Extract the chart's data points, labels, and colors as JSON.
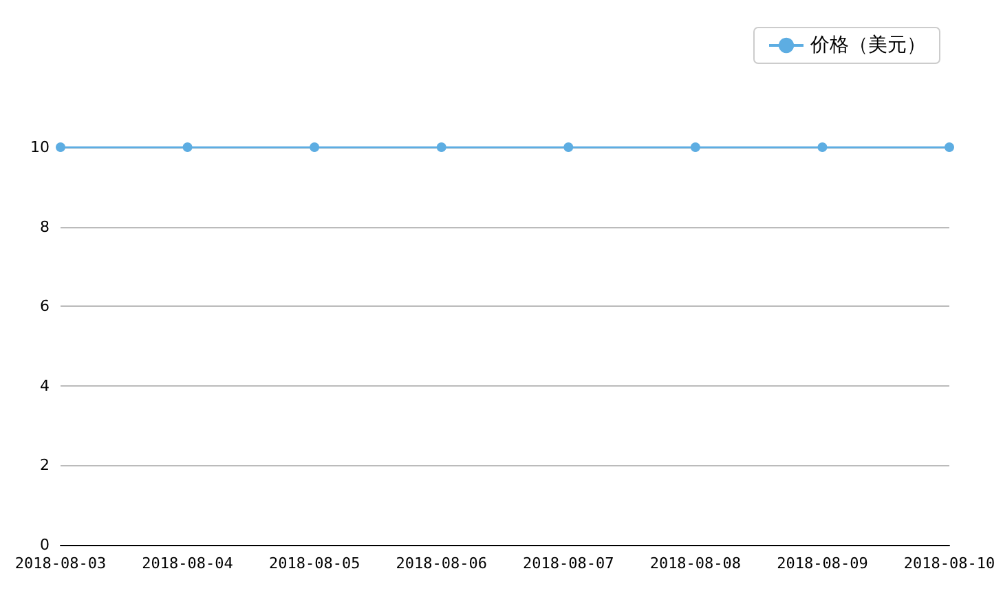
{
  "chart_data": {
    "type": "line",
    "categories": [
      "2018-08-03",
      "2018-08-04",
      "2018-08-05",
      "2018-08-06",
      "2018-08-07",
      "2018-08-08",
      "2018-08-09",
      "2018-08-10"
    ],
    "series": [
      {
        "name": "价格（美元）",
        "color": "#5dade2",
        "values": [
          10,
          10,
          10,
          10,
          10,
          10,
          10,
          10
        ]
      }
    ],
    "ylim": [
      0,
      10
    ],
    "yticks": [
      0,
      2,
      4,
      6,
      8,
      10
    ],
    "grid": "y",
    "legend": "top right",
    "marker": "circle",
    "line_style": "solid"
  }
}
